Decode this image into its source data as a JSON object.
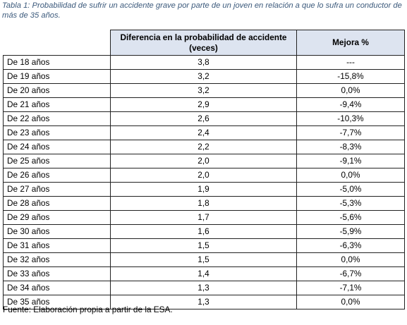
{
  "caption": "Tabla 1: Probabilidad de sufrir un accidente grave por parte de un joven en relación a que lo sufra un conductor de más de 35 años.",
  "table": {
    "headers": {
      "col1": "",
      "col2": "Diferencia en la probabilidad de accidente (veces)",
      "col3": "Mejora %"
    },
    "rows": [
      {
        "label": "De 18 años",
        "diferencia": "3,8",
        "mejora": "---"
      },
      {
        "label": "De 19 años",
        "diferencia": "3,2",
        "mejora": "-15,8%"
      },
      {
        "label": "De 20 años",
        "diferencia": "3,2",
        "mejora": "0,0%"
      },
      {
        "label": "De 21 años",
        "diferencia": "2,9",
        "mejora": "-9,4%"
      },
      {
        "label": "De 22 años",
        "diferencia": "2,6",
        "mejora": "-10,3%"
      },
      {
        "label": "De 23 años",
        "diferencia": "2,4",
        "mejora": "-7,7%"
      },
      {
        "label": "De 24 años",
        "diferencia": "2,2",
        "mejora": "-8,3%"
      },
      {
        "label": "De 25 años",
        "diferencia": "2,0",
        "mejora": "-9,1%"
      },
      {
        "label": "De 26 años",
        "diferencia": "2,0",
        "mejora": "0,0%"
      },
      {
        "label": "De 27 años",
        "diferencia": "1,9",
        "mejora": "-5,0%"
      },
      {
        "label": "De 28 años",
        "diferencia": "1,8",
        "mejora": "-5,3%"
      },
      {
        "label": "De 29 años",
        "diferencia": "1,7",
        "mejora": "-5,6%"
      },
      {
        "label": "De 30 años",
        "diferencia": "1,6",
        "mejora": "-5,9%"
      },
      {
        "label": "De 31 años",
        "diferencia": "1,5",
        "mejora": "-6,3%"
      },
      {
        "label": "De 32 años",
        "diferencia": "1,5",
        "mejora": "0,0%"
      },
      {
        "label": "De 33 años",
        "diferencia": "1,4",
        "mejora": "-6,7%"
      },
      {
        "label": "De 34 años",
        "diferencia": "1,3",
        "mejora": "-7,1%"
      },
      {
        "label": "De 35 años",
        "diferencia": "1,3",
        "mejora": "0,0%"
      }
    ]
  },
  "source": "Fuente: Elaboración propia a partir de la ESA.",
  "colors": {
    "caption_text": "#3c5a7c",
    "header_background": "#dde4f0",
    "border": "#222222"
  }
}
